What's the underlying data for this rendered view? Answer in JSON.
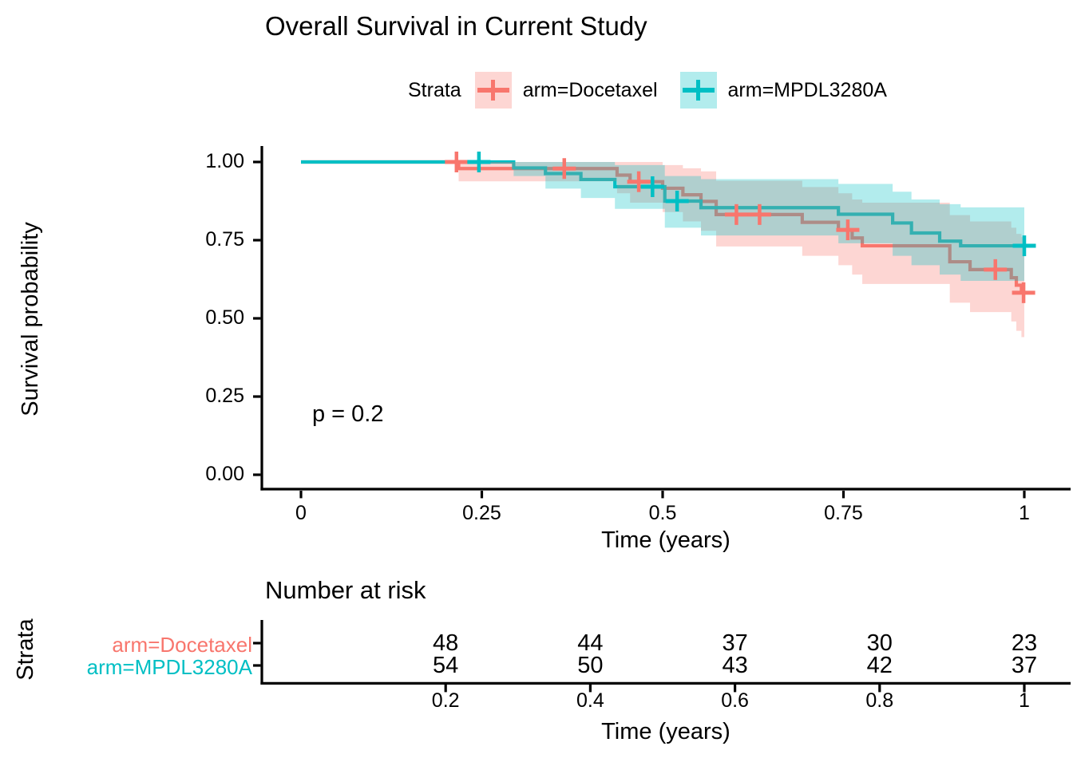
{
  "chart_data": {
    "type": "line",
    "subtype": "kaplan-meier-step",
    "title": "Overall Survival in Current Study",
    "xlabel": "Time (years)",
    "ylabel": "Survival probability",
    "xlim": [
      0,
      1
    ],
    "ylim": [
      0,
      1
    ],
    "grid": false,
    "x_ticks": [
      0,
      0.25,
      0.5,
      0.75,
      1
    ],
    "x_tick_labels": [
      "0",
      "0.25",
      "0.5",
      "0.75",
      "1"
    ],
    "y_ticks": [
      0,
      0.25,
      0.5,
      0.75,
      1
    ],
    "y_tick_labels": [
      "0.00",
      "0.25",
      "0.50",
      "0.75",
      "1.00"
    ],
    "annotations": {
      "p_value": "p = 0.2"
    },
    "legend": {
      "title": "Strata",
      "position": "top",
      "entries": [
        {
          "label": "arm=Docetaxel",
          "color": "#F8766D"
        },
        {
          "label": "arm=MPDL3280A",
          "color": "#00BFC4"
        }
      ]
    },
    "series": [
      {
        "name": "arm=Docetaxel",
        "color": "#F8766D",
        "ci_alpha": 0.3,
        "steps": [
          [
            0,
            1.0
          ],
          [
            0.218,
            0.979
          ],
          [
            0.437,
            0.958
          ],
          [
            0.455,
            0.937
          ],
          [
            0.5,
            0.916
          ],
          [
            0.528,
            0.895
          ],
          [
            0.553,
            0.874
          ],
          [
            0.574,
            0.832
          ],
          [
            0.693,
            0.807
          ],
          [
            0.743,
            0.783
          ],
          [
            0.762,
            0.757
          ],
          [
            0.776,
            0.732
          ],
          [
            0.897,
            0.681
          ],
          [
            0.925,
            0.656
          ],
          [
            0.982,
            0.63
          ],
          [
            0.989,
            0.606
          ],
          [
            0.996,
            0.582
          ],
          [
            1.0,
            0.582
          ]
        ],
        "censors": [
          [
            0.215,
            1.0
          ],
          [
            0.364,
            0.979
          ],
          [
            0.467,
            0.937
          ],
          [
            0.602,
            0.832
          ],
          [
            0.634,
            0.832
          ],
          [
            0.756,
            0.783
          ],
          [
            0.96,
            0.656
          ],
          [
            0.999,
            0.582
          ]
        ],
        "ci": [
          [
            0.218,
            0.938,
            1.0
          ],
          [
            0.437,
            0.9,
            1.0
          ],
          [
            0.455,
            0.87,
            1.0
          ],
          [
            0.5,
            0.84,
            0.99
          ],
          [
            0.528,
            0.81,
            0.98
          ],
          [
            0.553,
            0.78,
            0.97
          ],
          [
            0.574,
            0.73,
            0.94
          ],
          [
            0.693,
            0.7,
            0.92
          ],
          [
            0.743,
            0.67,
            0.9
          ],
          [
            0.762,
            0.64,
            0.88
          ],
          [
            0.776,
            0.61,
            0.87
          ],
          [
            0.897,
            0.55,
            0.83
          ],
          [
            0.925,
            0.52,
            0.81
          ],
          [
            0.982,
            0.49,
            0.79
          ],
          [
            0.989,
            0.46,
            0.77
          ],
          [
            0.996,
            0.44,
            0.76
          ],
          [
            1.0,
            0.44,
            0.76
          ]
        ]
      },
      {
        "name": "arm=MPDL3280A",
        "color": "#00BFC4",
        "ci_alpha": 0.3,
        "steps": [
          [
            0,
            1.0
          ],
          [
            0.294,
            0.981
          ],
          [
            0.338,
            0.963
          ],
          [
            0.387,
            0.944
          ],
          [
            0.434,
            0.921
          ],
          [
            0.503,
            0.875
          ],
          [
            0.553,
            0.854
          ],
          [
            0.743,
            0.833
          ],
          [
            0.818,
            0.805
          ],
          [
            0.844,
            0.773
          ],
          [
            0.883,
            0.747
          ],
          [
            0.912,
            0.732
          ],
          [
            1.0,
            0.732
          ]
        ],
        "censors": [
          [
            0.246,
            1.0
          ],
          [
            0.486,
            0.921
          ],
          [
            0.52,
            0.875
          ],
          [
            1.0,
            0.732
          ]
        ],
        "ci": [
          [
            0.294,
            0.955,
            1.0
          ],
          [
            0.338,
            0.915,
            1.0
          ],
          [
            0.387,
            0.885,
            1.0
          ],
          [
            0.434,
            0.85,
            0.99
          ],
          [
            0.503,
            0.79,
            0.955
          ],
          [
            0.553,
            0.765,
            0.945
          ],
          [
            0.743,
            0.74,
            0.93
          ],
          [
            0.818,
            0.7,
            0.905
          ],
          [
            0.844,
            0.67,
            0.88
          ],
          [
            0.883,
            0.64,
            0.865
          ],
          [
            0.912,
            0.62,
            0.855
          ],
          [
            1.0,
            0.62,
            0.855
          ]
        ]
      }
    ],
    "risk_table": {
      "title": "Number at risk",
      "ylabel": "Strata",
      "xlabel": "Time (years)",
      "times": [
        0.2,
        0.4,
        0.6,
        0.8,
        1
      ],
      "time_labels": [
        "0.2",
        "0.4",
        "0.6",
        "0.8",
        "1"
      ],
      "rows": [
        {
          "label": "arm=Docetaxel",
          "color": "#F8766D",
          "counts": [
            "48",
            "44",
            "37",
            "30",
            "23"
          ]
        },
        {
          "label": "arm=MPDL3280A",
          "color": "#00BFC4",
          "counts": [
            "54",
            "50",
            "43",
            "42",
            "37"
          ]
        }
      ]
    }
  }
}
